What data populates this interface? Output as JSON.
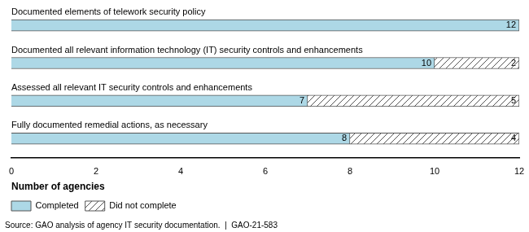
{
  "chart_data": {
    "type": "bar",
    "orientation": "horizontal",
    "stacked": true,
    "categories": [
      "Fully documented remedial actions, as necessary",
      "Assessed all relevant IT security controls and enhancements",
      "Documented all relevant information technology (IT) security controls and enhancements",
      "Documented elements of telework security policy"
    ],
    "series": [
      {
        "name": "Completed",
        "color": "#add8e6",
        "values": [
          8,
          7,
          10,
          12
        ]
      },
      {
        "name": "Did not complete",
        "color": "#ffffff",
        "values": [
          4,
          5,
          2,
          0
        ]
      }
    ],
    "xlabel": "Number of agencies",
    "xlim": [
      0,
      12
    ],
    "xticks": [
      0,
      2,
      4,
      6,
      8,
      10,
      12
    ],
    "grid": false,
    "data_labels": true,
    "legend": "bottom",
    "annotations": [
      "Source: GAO analysis of agency IT security documentation.  |  GAO-21-583"
    ]
  }
}
